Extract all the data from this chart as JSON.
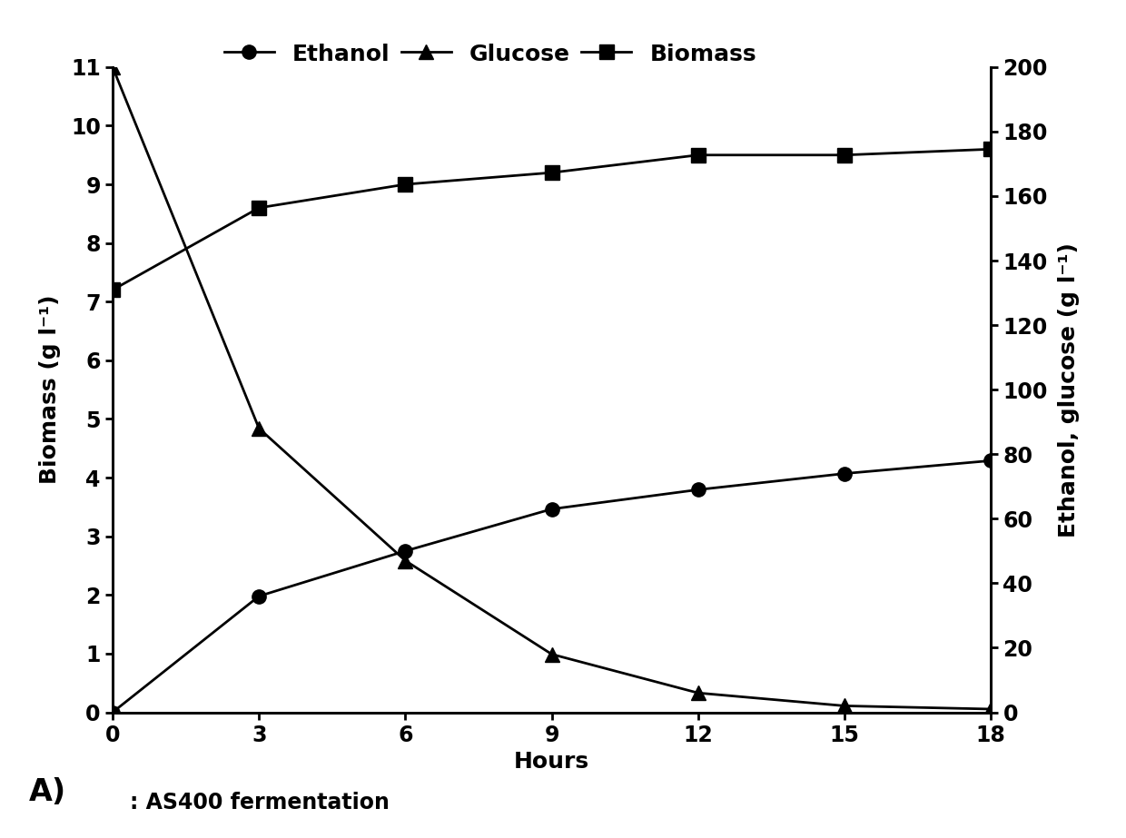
{
  "hours": [
    0,
    3,
    6,
    9,
    12,
    15,
    18
  ],
  "ethanol_gl": [
    0,
    36,
    50,
    63,
    69,
    74,
    78
  ],
  "glucose_gl": [
    200,
    88,
    47,
    18,
    6,
    2,
    1
  ],
  "biomass_gl": [
    7.2,
    8.6,
    9.0,
    9.2,
    9.5,
    9.5,
    9.6
  ],
  "left_ylim": [
    0,
    11
  ],
  "left_yticks": [
    0,
    1,
    2,
    3,
    4,
    5,
    6,
    7,
    8,
    9,
    10,
    11
  ],
  "right_ylim": [
    0,
    200
  ],
  "right_yticks": [
    0,
    20,
    40,
    60,
    80,
    100,
    120,
    140,
    160,
    180,
    200
  ],
  "xlim": [
    0,
    18
  ],
  "xticks": [
    0,
    3,
    6,
    9,
    12,
    15,
    18
  ],
  "xlabel": "Hours",
  "ylabel_left": "Biomass (g l⁻¹)",
  "ylabel_right": "Ethanol, glucose (g l⁻¹)",
  "legend_labels": [
    "Ethanol",
    "Glucose",
    "Biomass"
  ],
  "annotation": ": AS400 fermentation",
  "panel_label": "A)",
  "line_color": "#000000",
  "marker_ethanol": "o",
  "marker_glucose": "^",
  "marker_biomass": "s",
  "markersize": 11,
  "linewidth": 2.0,
  "fontsize_ticks": 17,
  "fontsize_labels": 18,
  "fontsize_legend": 18,
  "fontsize_annotation": 17,
  "fontsize_panel": 24,
  "background_color": "#ffffff"
}
